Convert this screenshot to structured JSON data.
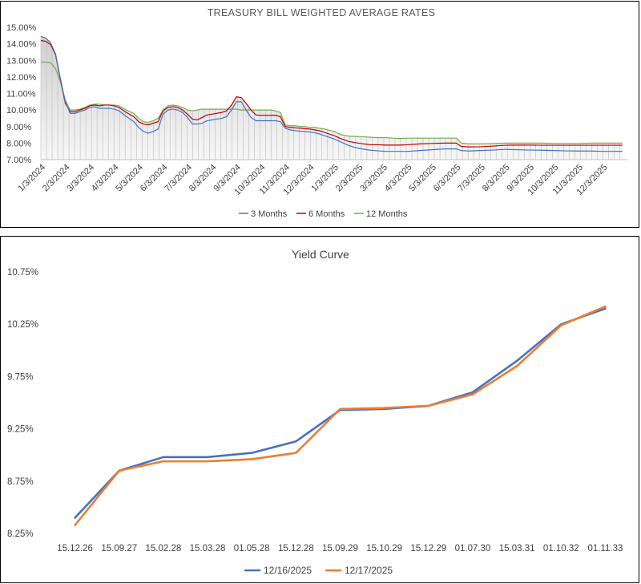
{
  "colors": {
    "three_month": "#4472C4",
    "six_month": "#C00000",
    "twelve_month": "#70AD47",
    "yc_1216": "#4472C4",
    "yc_1217": "#ED7D31"
  },
  "chart_data": [
    {
      "type": "line",
      "title": "TREASURY BILL WEIGHTED AVERAGE RATES",
      "xlabel": "",
      "ylabel": "",
      "ylim": [
        7.0,
        15.0
      ],
      "yticks": [
        "15.00%",
        "14.00%",
        "13.00%",
        "12.00%",
        "11.00%",
        "10.00%",
        "9.00%",
        "8.00%",
        "7.00%"
      ],
      "x_tick_labels": [
        "1/3/2024",
        "2/3/2024",
        "3/3/2024",
        "4/3/2024",
        "5/3/2024",
        "6/3/2024",
        "7/3/2024",
        "8/3/2024",
        "9/3/2024",
        "10/3/2024",
        "11/3/2024",
        "12/3/2024",
        "1/3/2025",
        "2/3/2025",
        "3/3/2025",
        "4/3/2025",
        "5/3/2025",
        "6/3/2025",
        "7/3/2025",
        "8/3/2025",
        "9/3/2025",
        "10/3/2025",
        "11/3/2025",
        "12/3/2025"
      ],
      "x_month_index_range": [
        0,
        24
      ],
      "series": [
        {
          "name": "3 Months",
          "x": [
            0.0,
            0.2,
            0.4,
            0.6,
            0.8,
            1.0,
            1.2,
            1.4,
            1.6,
            1.8,
            2.0,
            2.2,
            2.4,
            2.6,
            2.8,
            3.0,
            3.2,
            3.5,
            3.8,
            4.0,
            4.2,
            4.4,
            4.6,
            4.8,
            5.0,
            5.2,
            5.4,
            5.6,
            5.8,
            6.0,
            6.2,
            6.4,
            6.6,
            6.8,
            7.0,
            7.2,
            7.4,
            7.6,
            7.8,
            8.0,
            8.2,
            8.4,
            8.6,
            8.8,
            9.0,
            9.2,
            9.4,
            9.6,
            9.8,
            10.0,
            10.2,
            10.4,
            10.6,
            10.8,
            11.0,
            11.2,
            11.4,
            11.6,
            11.8,
            12.0,
            12.3,
            12.6,
            12.9,
            13.2,
            13.5,
            13.8,
            14.1,
            14.4,
            14.7,
            15.0,
            15.5,
            16.0,
            16.5,
            17.0,
            17.2,
            17.5,
            18.0,
            18.5,
            19.0,
            19.5,
            20.0,
            20.5,
            21.0,
            21.5,
            22.0,
            22.5,
            23.0,
            23.5,
            23.8
          ],
          "values": [
            14.45,
            14.35,
            14.05,
            13.4,
            11.9,
            10.5,
            9.8,
            9.8,
            9.9,
            10.0,
            10.15,
            10.2,
            10.1,
            10.1,
            10.1,
            10.05,
            9.95,
            9.6,
            9.3,
            8.95,
            8.7,
            8.6,
            8.7,
            8.85,
            9.75,
            10.0,
            10.05,
            10.0,
            9.85,
            9.55,
            9.15,
            9.15,
            9.2,
            9.35,
            9.4,
            9.45,
            9.5,
            9.6,
            10.0,
            10.5,
            10.5,
            10.0,
            9.55,
            9.35,
            9.35,
            9.35,
            9.35,
            9.35,
            9.3,
            8.9,
            8.8,
            8.75,
            8.72,
            8.7,
            8.67,
            8.62,
            8.55,
            8.45,
            8.35,
            8.25,
            8.05,
            7.85,
            7.72,
            7.63,
            7.57,
            7.53,
            7.5,
            7.5,
            7.5,
            7.5,
            7.55,
            7.6,
            7.65,
            7.65,
            7.55,
            7.52,
            7.55,
            7.58,
            7.62,
            7.6,
            7.58,
            7.57,
            7.55,
            7.53,
            7.52,
            7.52,
            7.5,
            7.5,
            7.5
          ]
        },
        {
          "name": "6 Months",
          "x": [
            0.0,
            0.2,
            0.4,
            0.6,
            0.8,
            1.0,
            1.2,
            1.4,
            1.6,
            1.8,
            2.0,
            2.2,
            2.4,
            2.6,
            2.8,
            3.0,
            3.2,
            3.5,
            3.8,
            4.0,
            4.2,
            4.4,
            4.6,
            4.8,
            5.0,
            5.2,
            5.4,
            5.6,
            5.8,
            6.0,
            6.2,
            6.4,
            6.6,
            6.8,
            7.0,
            7.2,
            7.4,
            7.6,
            7.8,
            8.0,
            8.2,
            8.4,
            8.6,
            8.8,
            9.0,
            9.2,
            9.4,
            9.6,
            9.8,
            10.0,
            10.2,
            10.4,
            10.6,
            10.8,
            11.0,
            11.2,
            11.4,
            11.6,
            11.8,
            12.0,
            12.3,
            12.6,
            12.9,
            13.2,
            13.5,
            13.8,
            14.1,
            14.4,
            14.7,
            15.0,
            15.5,
            16.0,
            16.5,
            17.0,
            17.2,
            17.5,
            18.0,
            18.5,
            19.0,
            19.5,
            20.0,
            20.5,
            21.0,
            21.5,
            22.0,
            22.5,
            23.0,
            23.5,
            23.8
          ],
          "values": [
            14.2,
            14.15,
            13.95,
            13.35,
            11.85,
            10.4,
            9.9,
            9.9,
            10.0,
            10.1,
            10.25,
            10.3,
            10.25,
            10.3,
            10.3,
            10.25,
            10.15,
            9.85,
            9.6,
            9.3,
            9.15,
            9.1,
            9.2,
            9.3,
            9.95,
            10.15,
            10.2,
            10.15,
            10.0,
            9.75,
            9.45,
            9.4,
            9.55,
            9.7,
            9.75,
            9.8,
            9.85,
            9.95,
            10.3,
            10.8,
            10.75,
            10.4,
            10.0,
            9.7,
            9.68,
            9.68,
            9.68,
            9.68,
            9.6,
            9.0,
            8.95,
            8.92,
            8.9,
            8.87,
            8.85,
            8.8,
            8.75,
            8.65,
            8.55,
            8.45,
            8.25,
            8.1,
            8.02,
            7.95,
            7.9,
            7.9,
            7.88,
            7.88,
            7.88,
            7.9,
            7.95,
            7.98,
            8.0,
            8.0,
            7.8,
            7.77,
            7.78,
            7.82,
            7.87,
            7.88,
            7.88,
            7.87,
            7.87,
            7.87,
            7.87,
            7.87,
            7.87,
            7.87,
            7.87
          ]
        },
        {
          "name": "12 Months",
          "x": [
            0.0,
            0.2,
            0.4,
            0.6,
            0.8,
            1.0,
            1.2,
            1.4,
            1.6,
            1.8,
            2.0,
            2.2,
            2.4,
            2.6,
            2.8,
            3.0,
            3.2,
            3.5,
            3.8,
            4.0,
            4.2,
            4.4,
            4.6,
            4.8,
            5.0,
            5.2,
            5.4,
            5.6,
            5.8,
            6.0,
            6.2,
            6.4,
            6.6,
            6.8,
            7.0,
            7.2,
            7.4,
            7.6,
            7.8,
            8.0,
            8.2,
            8.4,
            8.6,
            8.8,
            9.0,
            9.2,
            9.4,
            9.6,
            9.8,
            10.0,
            10.2,
            10.4,
            10.6,
            10.8,
            11.0,
            11.2,
            11.4,
            11.6,
            11.8,
            12.0,
            12.3,
            12.6,
            12.9,
            13.2,
            13.5,
            13.8,
            14.1,
            14.4,
            14.7,
            15.0,
            15.5,
            16.0,
            16.5,
            17.0,
            17.2,
            17.5,
            18.0,
            18.5,
            19.0,
            19.5,
            20.0,
            20.5,
            21.0,
            21.5,
            22.0,
            22.5,
            23.0,
            23.5,
            23.8
          ],
          "values": [
            12.9,
            12.9,
            12.85,
            12.5,
            11.7,
            10.6,
            10.0,
            10.0,
            10.05,
            10.15,
            10.3,
            10.35,
            10.35,
            10.3,
            10.3,
            10.3,
            10.25,
            10.0,
            9.8,
            9.5,
            9.3,
            9.25,
            9.35,
            9.5,
            10.0,
            10.25,
            10.3,
            10.25,
            10.15,
            10.0,
            9.95,
            10.0,
            10.05,
            10.05,
            10.05,
            10.05,
            10.05,
            10.05,
            10.05,
            10.05,
            10.0,
            10.0,
            10.0,
            10.0,
            10.0,
            10.0,
            10.0,
            9.95,
            9.85,
            9.1,
            9.05,
            9.05,
            9.0,
            9.0,
            8.95,
            8.95,
            8.9,
            8.85,
            8.78,
            8.7,
            8.5,
            8.42,
            8.4,
            8.38,
            8.35,
            8.33,
            8.33,
            8.3,
            8.28,
            8.3,
            8.3,
            8.3,
            8.3,
            8.3,
            8.0,
            7.95,
            7.95,
            7.97,
            8.0,
            8.0,
            8.0,
            8.0,
            7.98,
            7.98,
            7.98,
            8.0,
            8.0,
            8.0,
            8.0
          ]
        }
      ]
    },
    {
      "type": "line",
      "title": "Yield Curve",
      "xlabel": "",
      "ylabel": "",
      "ylim": [
        8.25,
        10.75
      ],
      "yticks": [
        "10.75%",
        "10.25%",
        "9.75%",
        "9.25%",
        "8.75%",
        "8.25%"
      ],
      "categories": [
        "15.12.26",
        "15.09.27",
        "15.02.28",
        "15.03.28",
        "01.05.28",
        "15.12.28",
        "15.09.29",
        "15.10.29",
        "15.12.29",
        "01.07.30",
        "15.03.31",
        "01.10.32",
        "01.11.33"
      ],
      "series": [
        {
          "name": "12/16/2025",
          "values": [
            8.4,
            8.85,
            8.98,
            8.98,
            9.02,
            9.13,
            9.43,
            9.44,
            9.47,
            9.6,
            9.9,
            10.25,
            10.4
          ]
        },
        {
          "name": "12/17/2025",
          "values": [
            8.33,
            8.85,
            8.94,
            8.94,
            8.96,
            9.02,
            9.44,
            9.45,
            9.47,
            9.58,
            9.85,
            10.24,
            10.42
          ]
        }
      ]
    }
  ]
}
